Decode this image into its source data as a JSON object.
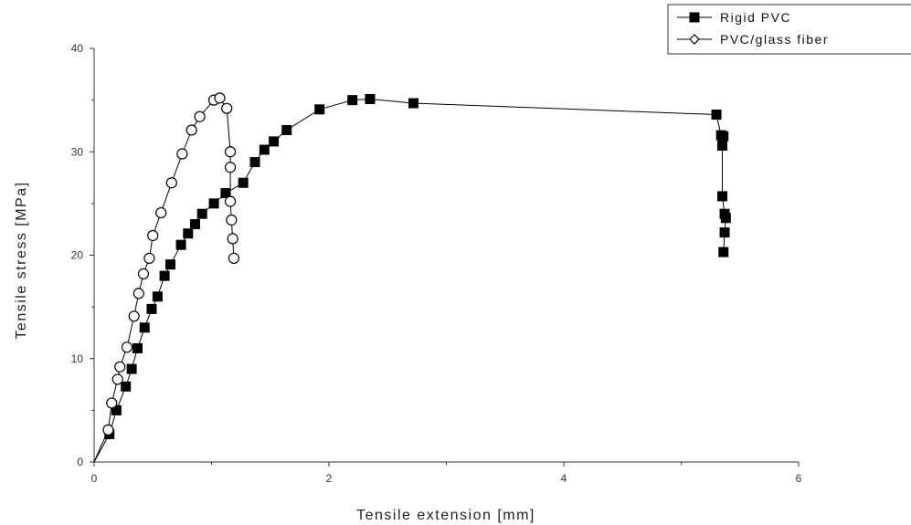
{
  "chart_data": {
    "type": "scatter",
    "title": "",
    "xlabel": "Tensile extension [mm]",
    "ylabel": "Tensile stress [MPa]",
    "xlim": [
      0,
      6
    ],
    "ylim": [
      0,
      40
    ],
    "x_ticks": [
      "0",
      "2",
      "4",
      "6"
    ],
    "y_ticks": [
      "0",
      "10",
      "20",
      "30",
      "40"
    ],
    "grid": false,
    "legend_position": "top-right",
    "series": [
      {
        "name": "Rigid PVC",
        "marker": "filled-square",
        "color": "#000000",
        "points": [
          [
            0.0,
            0.0
          ],
          [
            0.13,
            2.7
          ],
          [
            0.19,
            5.0
          ],
          [
            0.27,
            7.3
          ],
          [
            0.32,
            9.0
          ],
          [
            0.37,
            11.0
          ],
          [
            0.43,
            13.0
          ],
          [
            0.49,
            14.8
          ],
          [
            0.54,
            16.0
          ],
          [
            0.6,
            18.0
          ],
          [
            0.65,
            19.1
          ],
          [
            0.74,
            21.0
          ],
          [
            0.8,
            22.1
          ],
          [
            0.86,
            23.0
          ],
          [
            0.92,
            24.0
          ],
          [
            1.02,
            25.0
          ],
          [
            1.12,
            26.0
          ],
          [
            1.27,
            27.0
          ],
          [
            1.37,
            29.0
          ],
          [
            1.45,
            30.2
          ],
          [
            1.53,
            31.0
          ],
          [
            1.64,
            32.1
          ],
          [
            1.92,
            34.1
          ],
          [
            2.2,
            35.0
          ],
          [
            2.35,
            35.1
          ],
          [
            2.72,
            34.7
          ],
          [
            5.3,
            33.6
          ],
          [
            5.34,
            31.6
          ],
          [
            5.36,
            31.5
          ],
          [
            5.35,
            30.6
          ],
          [
            5.35,
            25.7
          ],
          [
            5.37,
            24.0
          ],
          [
            5.38,
            23.6
          ],
          [
            5.37,
            22.2
          ],
          [
            5.36,
            20.3
          ]
        ]
      },
      {
        "name": "PVC/glass fiber",
        "marker": "open-circle",
        "color": "#000000",
        "points": [
          [
            0.0,
            0.0
          ],
          [
            0.12,
            3.1
          ],
          [
            0.15,
            5.7
          ],
          [
            0.2,
            8.0
          ],
          [
            0.22,
            9.2
          ],
          [
            0.28,
            11.1
          ],
          [
            0.34,
            14.1
          ],
          [
            0.38,
            16.3
          ],
          [
            0.42,
            18.2
          ],
          [
            0.47,
            19.7
          ],
          [
            0.5,
            21.9
          ],
          [
            0.57,
            24.1
          ],
          [
            0.66,
            27.0
          ],
          [
            0.75,
            29.8
          ],
          [
            0.83,
            32.1
          ],
          [
            0.9,
            33.4
          ],
          [
            1.02,
            35.0
          ],
          [
            1.07,
            35.2
          ],
          [
            1.13,
            34.2
          ],
          [
            1.16,
            30.0
          ],
          [
            1.16,
            28.5
          ],
          [
            1.16,
            25.2
          ],
          [
            1.17,
            23.4
          ],
          [
            1.18,
            21.6
          ],
          [
            1.19,
            19.7
          ]
        ]
      }
    ]
  }
}
